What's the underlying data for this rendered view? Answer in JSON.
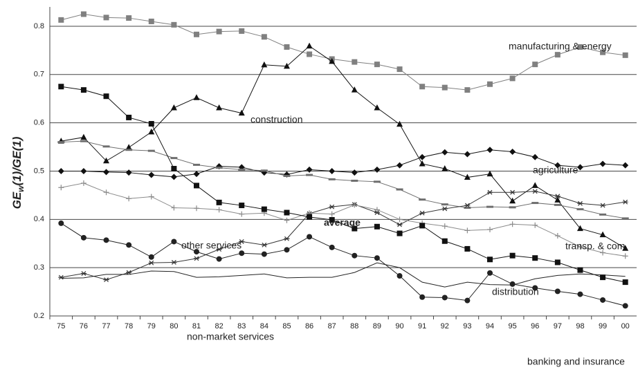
{
  "chart_data": {
    "type": "line",
    "y_label": [
      "GE",
      "w",
      "(1)/GE(1)"
    ],
    "categories": [
      "75",
      "76",
      "77",
      "78",
      "79",
      "80",
      "81",
      "82",
      "83",
      "84",
      "85",
      "86",
      "87",
      "88",
      "89",
      "90",
      "91",
      "92",
      "93",
      "94",
      "95",
      "96",
      "97",
      "98",
      "99",
      "00"
    ],
    "ylim": [
      0.2,
      0.84
    ],
    "yticks": [
      0.2,
      0.3,
      0.4,
      0.5,
      0.6,
      0.7,
      0.8
    ],
    "grid": true,
    "series": [
      {
        "name": "manufacturing & energy",
        "color": "#808080",
        "marker": "square",
        "values": [
          0.813,
          0.825,
          0.818,
          0.817,
          0.81,
          0.803,
          0.783,
          0.789,
          0.79,
          0.778,
          0.757,
          0.742,
          0.732,
          0.726,
          0.721,
          0.711,
          0.675,
          0.673,
          0.668,
          0.68,
          0.692,
          0.721,
          0.741,
          0.757,
          0.746,
          0.74
        ]
      },
      {
        "name": "construction",
        "color": "#111111",
        "marker": "triangle",
        "values": [
          0.562,
          0.57,
          0.521,
          0.549,
          0.581,
          0.631,
          0.652,
          0.631,
          0.62,
          0.72,
          0.717,
          0.759,
          0.727,
          0.668,
          0.631,
          0.597,
          0.515,
          0.505,
          0.487,
          0.494,
          0.438,
          0.47,
          0.44,
          0.381,
          0.368,
          0.34
        ]
      },
      {
        "name": "agriculture",
        "color": "#111111",
        "marker": "diamond",
        "values": [
          0.5,
          0.5,
          0.498,
          0.497,
          0.492,
          0.488,
          0.494,
          0.51,
          0.508,
          0.497,
          0.493,
          0.503,
          0.5,
          0.497,
          0.503,
          0.512,
          0.529,
          0.539,
          0.535,
          0.544,
          0.54,
          0.529,
          0.512,
          0.508,
          0.515,
          0.512
        ]
      },
      {
        "name": "average",
        "color": "#6e6e6e",
        "marker": "dash",
        "values": [
          0.56,
          0.562,
          0.551,
          0.544,
          0.542,
          0.527,
          0.513,
          0.507,
          0.503,
          0.501,
          0.49,
          0.492,
          0.483,
          0.48,
          0.478,
          0.462,
          0.441,
          0.431,
          0.424,
          0.426,
          0.425,
          0.434,
          0.43,
          0.421,
          0.41,
          0.402
        ]
      },
      {
        "name": "transp. & com.",
        "color": "#333333",
        "marker": "asterisk",
        "values": [
          0.28,
          0.288,
          0.275,
          0.29,
          0.31,
          0.311,
          0.319,
          0.338,
          0.354,
          0.347,
          0.36,
          0.412,
          0.426,
          0.431,
          0.414,
          0.389,
          0.413,
          0.422,
          0.429,
          0.456,
          0.456,
          0.458,
          0.448,
          0.433,
          0.429,
          0.436
        ]
      },
      {
        "name": "other services",
        "color": "#8a8a8a",
        "marker": "plus",
        "values": [
          0.466,
          0.475,
          0.456,
          0.443,
          0.447,
          0.424,
          0.423,
          0.42,
          0.411,
          0.413,
          0.398,
          0.413,
          0.411,
          0.43,
          0.42,
          0.4,
          0.392,
          0.386,
          0.377,
          0.379,
          0.39,
          0.388,
          0.366,
          0.343,
          0.331,
          0.324
        ]
      },
      {
        "name": "distribution",
        "color": "#111111",
        "marker": "square",
        "values": [
          0.675,
          0.668,
          0.655,
          0.611,
          0.598,
          0.505,
          0.47,
          0.435,
          0.429,
          0.421,
          0.414,
          0.405,
          0.399,
          0.381,
          0.385,
          0.371,
          0.387,
          0.355,
          0.339,
          0.317,
          0.325,
          0.32,
          0.311,
          0.295,
          0.28,
          0.27
        ]
      },
      {
        "name": "non-market services",
        "color": "#222222",
        "marker": "none",
        "values": [
          0.278,
          0.279,
          0.286,
          0.286,
          0.293,
          0.292,
          0.28,
          0.281,
          0.284,
          0.287,
          0.279,
          0.28,
          0.28,
          0.29,
          0.31,
          0.3,
          0.27,
          0.26,
          0.27,
          0.265,
          0.264,
          0.277,
          0.284,
          0.287,
          0.285,
          0.282
        ]
      },
      {
        "name": "banking and insurance",
        "color": "#222222",
        "marker": "circle",
        "values": [
          0.392,
          0.362,
          0.357,
          0.347,
          0.322,
          0.354,
          0.333,
          0.318,
          0.33,
          0.328,
          0.337,
          0.364,
          0.342,
          0.325,
          0.32,
          0.283,
          0.239,
          0.238,
          0.232,
          0.289,
          0.266,
          0.258,
          0.251,
          0.245,
          0.233,
          0.221
        ]
      }
    ]
  }
}
